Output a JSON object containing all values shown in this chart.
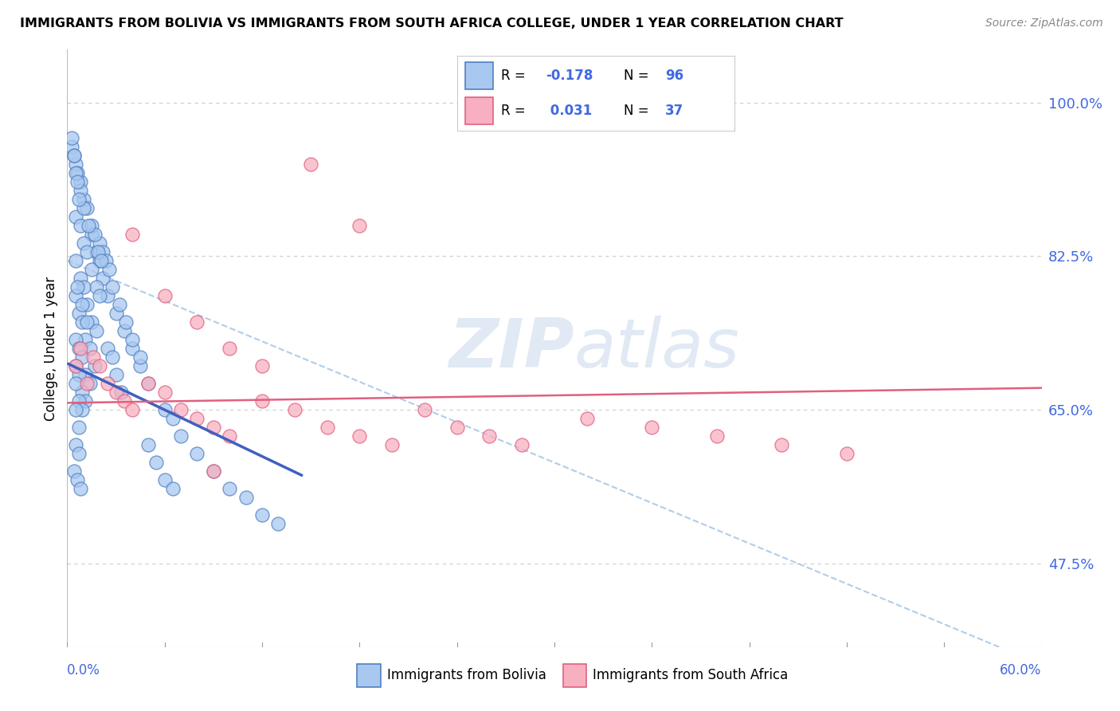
{
  "title": "IMMIGRANTS FROM BOLIVIA VS IMMIGRANTS FROM SOUTH AFRICA COLLEGE, UNDER 1 YEAR CORRELATION CHART",
  "source": "Source: ZipAtlas.com",
  "ylabel": "College, Under 1 year",
  "ytick_labels": [
    "47.5%",
    "65.0%",
    "82.5%",
    "100.0%"
  ],
  "ytick_values": [
    0.475,
    0.65,
    0.825,
    1.0
  ],
  "xmin": 0.0,
  "xmax": 0.6,
  "ymin": 0.38,
  "ymax": 1.06,
  "color_bolivia": "#A8C8F0",
  "color_bolivia_edge": "#5080C0",
  "color_sa": "#F8B0C0",
  "color_sa_edge": "#E06080",
  "color_bolivia_line": "#4060C0",
  "color_sa_line": "#E06080",
  "watermark_zip": "ZIP",
  "watermark_atlas": "atlas",
  "bolivia_scatter_x": [
    0.005,
    0.008,
    0.01,
    0.012,
    0.015,
    0.018,
    0.02,
    0.022,
    0.025,
    0.005,
    0.008,
    0.01,
    0.012,
    0.015,
    0.018,
    0.02,
    0.005,
    0.008,
    0.01,
    0.012,
    0.015,
    0.018,
    0.005,
    0.007,
    0.009,
    0.011,
    0.014,
    0.017,
    0.005,
    0.007,
    0.009,
    0.011,
    0.014,
    0.005,
    0.007,
    0.009,
    0.011,
    0.005,
    0.007,
    0.009,
    0.005,
    0.007,
    0.005,
    0.007,
    0.004,
    0.006,
    0.008,
    0.03,
    0.035,
    0.04,
    0.045,
    0.05,
    0.06,
    0.065,
    0.07,
    0.08,
    0.09,
    0.1,
    0.11,
    0.12,
    0.13,
    0.003,
    0.004,
    0.006,
    0.02,
    0.022,
    0.024,
    0.026,
    0.028,
    0.032,
    0.036,
    0.04,
    0.045,
    0.015,
    0.017,
    0.019,
    0.021,
    0.008,
    0.01,
    0.013,
    0.006,
    0.009,
    0.012,
    0.025,
    0.028,
    0.03,
    0.033,
    0.003,
    0.004,
    0.005,
    0.006,
    0.007,
    0.05,
    0.055,
    0.06,
    0.065
  ],
  "bolivia_scatter_y": [
    0.93,
    0.91,
    0.89,
    0.88,
    0.85,
    0.83,
    0.82,
    0.8,
    0.78,
    0.87,
    0.86,
    0.84,
    0.83,
    0.81,
    0.79,
    0.78,
    0.82,
    0.8,
    0.79,
    0.77,
    0.75,
    0.74,
    0.78,
    0.76,
    0.75,
    0.73,
    0.72,
    0.7,
    0.73,
    0.72,
    0.71,
    0.69,
    0.68,
    0.7,
    0.69,
    0.67,
    0.66,
    0.68,
    0.66,
    0.65,
    0.65,
    0.63,
    0.61,
    0.6,
    0.58,
    0.57,
    0.56,
    0.76,
    0.74,
    0.72,
    0.7,
    0.68,
    0.65,
    0.64,
    0.62,
    0.6,
    0.58,
    0.56,
    0.55,
    0.53,
    0.52,
    0.95,
    0.94,
    0.92,
    0.84,
    0.83,
    0.82,
    0.81,
    0.79,
    0.77,
    0.75,
    0.73,
    0.71,
    0.86,
    0.85,
    0.83,
    0.82,
    0.9,
    0.88,
    0.86,
    0.79,
    0.77,
    0.75,
    0.72,
    0.71,
    0.69,
    0.67,
    0.96,
    0.94,
    0.92,
    0.91,
    0.89,
    0.61,
    0.59,
    0.57,
    0.56
  ],
  "sa_scatter_x": [
    0.005,
    0.008,
    0.012,
    0.016,
    0.02,
    0.025,
    0.03,
    0.035,
    0.04,
    0.05,
    0.06,
    0.07,
    0.08,
    0.09,
    0.1,
    0.12,
    0.14,
    0.16,
    0.18,
    0.2,
    0.22,
    0.24,
    0.26,
    0.28,
    0.32,
    0.36,
    0.4,
    0.44,
    0.48,
    0.04,
    0.06,
    0.08,
    0.1,
    0.12,
    0.15,
    0.18,
    0.09
  ],
  "sa_scatter_y": [
    0.7,
    0.72,
    0.68,
    0.71,
    0.7,
    0.68,
    0.67,
    0.66,
    0.65,
    0.68,
    0.67,
    0.65,
    0.64,
    0.63,
    0.62,
    0.66,
    0.65,
    0.63,
    0.62,
    0.61,
    0.65,
    0.63,
    0.62,
    0.61,
    0.64,
    0.63,
    0.62,
    0.61,
    0.6,
    0.85,
    0.78,
    0.75,
    0.72,
    0.7,
    0.93,
    0.86,
    0.58
  ],
  "bolivia_trend_x": [
    0.0,
    0.145
  ],
  "bolivia_trend_y": [
    0.703,
    0.575
  ],
  "sa_trend_x": [
    0.0,
    0.6
  ],
  "sa_trend_y": [
    0.658,
    0.675
  ],
  "dashed_line_x": [
    0.0,
    0.6
  ],
  "dashed_line_y": [
    0.82,
    0.36
  ]
}
